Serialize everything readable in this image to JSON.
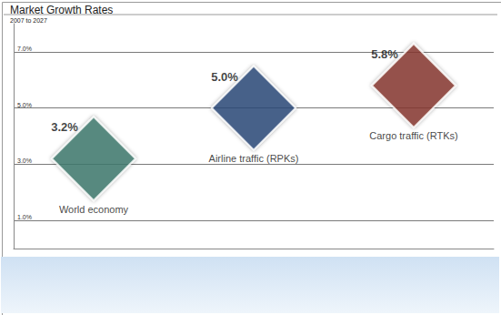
{
  "chart_data": {
    "type": "scatter",
    "title": "Market Growth Rates",
    "subtitle": "2007 to 2027",
    "categories": [
      "World economy",
      "Airline traffic (RPKs)",
      "Cargo traffic (RTKs)"
    ],
    "values": [
      3.2,
      5.0,
      5.8
    ],
    "value_labels": [
      "3.2%",
      "5.0%",
      "5.8%"
    ],
    "colors": [
      "#3f7a6e",
      "#2c4a7a",
      "#8a3a2e"
    ],
    "marker": "diamond",
    "ylim": [
      0,
      8
    ],
    "yticks": [
      {
        "value": 1,
        "label": "1.0%"
      },
      {
        "value": 3,
        "label": "3.0%"
      },
      {
        "value": 5,
        "label": "5.0%"
      },
      {
        "value": 7,
        "label": "7.0%"
      }
    ],
    "grid": true,
    "data_labels": true,
    "tick_labels": "y"
  }
}
